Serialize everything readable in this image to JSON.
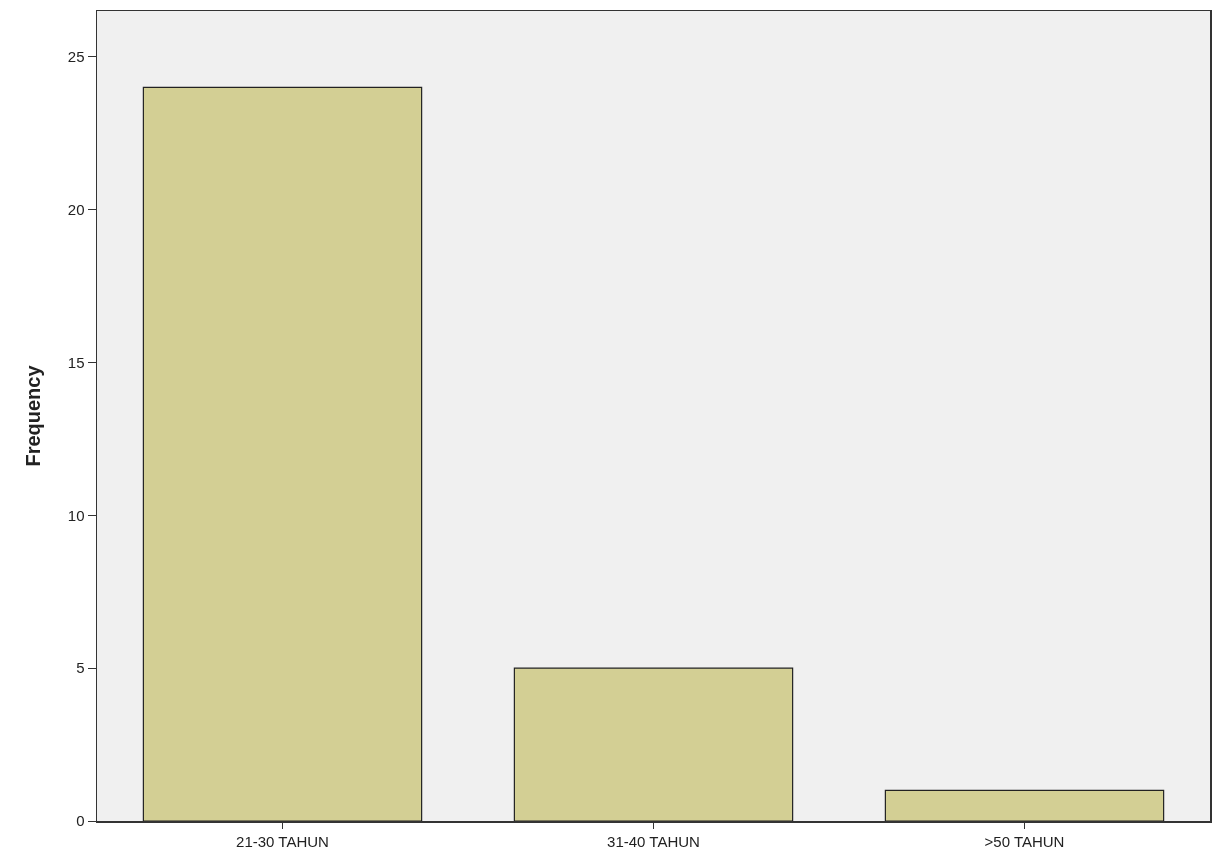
{
  "chart_data": {
    "type": "bar",
    "ylabel": "Frequency",
    "categories": [
      "21-30 TAHUN",
      "31-40 TAHUN",
      ">50 TAHUN"
    ],
    "values": [
      24,
      5,
      1
    ],
    "color": "#d3cf94",
    "ylim": [
      0,
      26.5
    ],
    "yticks": [
      0,
      5,
      10,
      15,
      20,
      25
    ],
    "grid": false
  }
}
